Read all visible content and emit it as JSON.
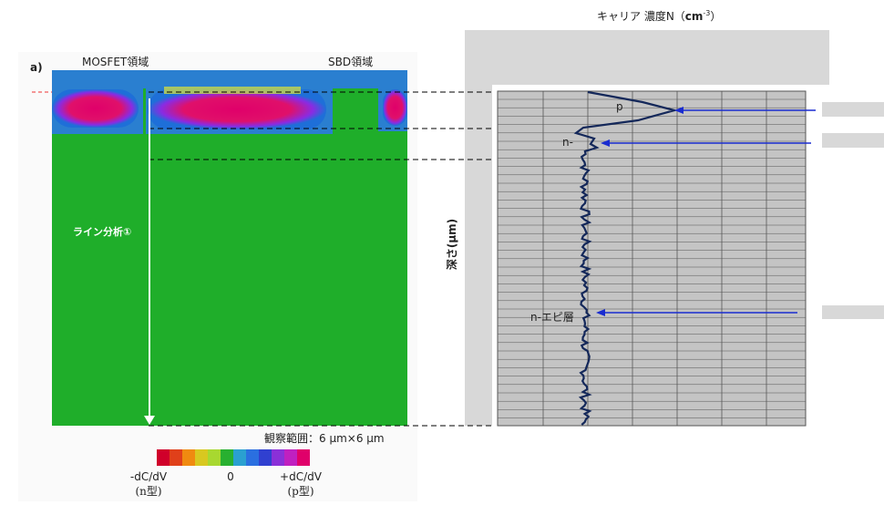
{
  "figure": {
    "panel_label": "a)",
    "left_region": "MOSFET領域",
    "right_region": "SBD領域",
    "line_label": "ライン分析①",
    "observation": "観察範囲：6 μm×6 μm",
    "colorbar": {
      "left": "-dC/dV",
      "middle": "0",
      "right": "+dC/dV",
      "left_type": "(n型)",
      "right_type": "(p型)"
    },
    "profile": {
      "x_label": {
        "prefix": "キャリア 濃度N（",
        "unit": "cm",
        "superscript": "-3",
        "suffix": "）"
      },
      "y_label": "深さ(μm)",
      "layers": [
        "p",
        "n-",
        "n-エピ層"
      ]
    }
  }
}
